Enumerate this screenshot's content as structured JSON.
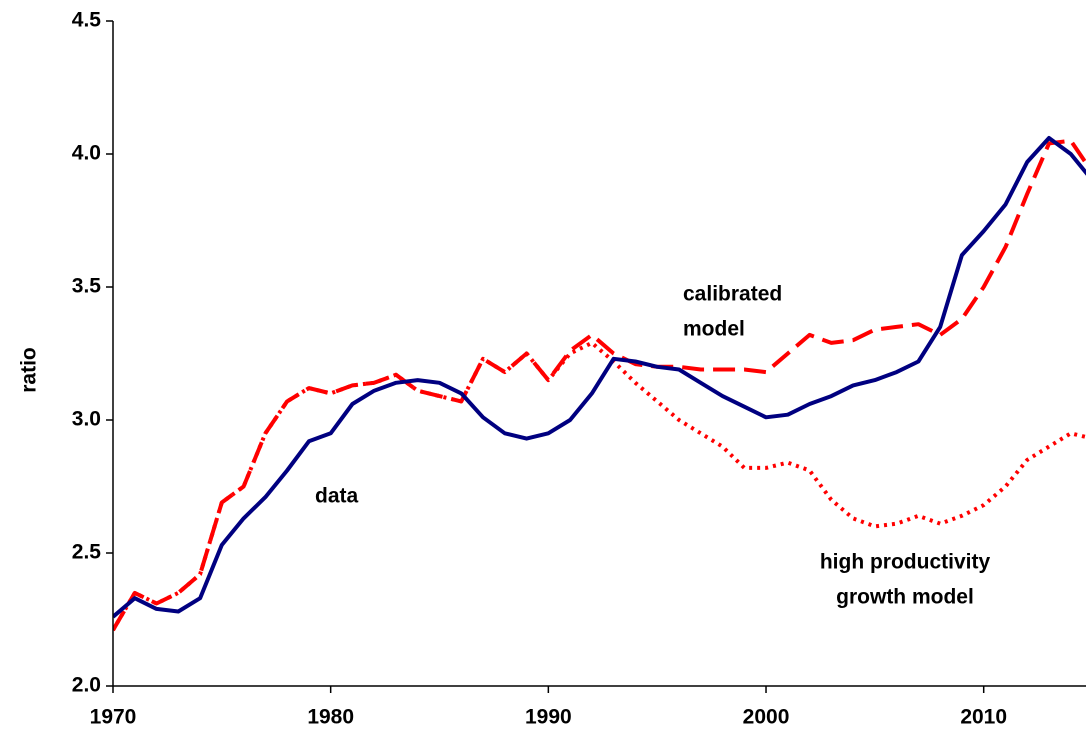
{
  "chart_data": {
    "type": "line",
    "y_label": "ratio",
    "x": [
      1970,
      1971,
      1972,
      1973,
      1974,
      1975,
      1976,
      1977,
      1978,
      1979,
      1980,
      1981,
      1982,
      1983,
      1984,
      1985,
      1986,
      1987,
      1988,
      1989,
      1990,
      1991,
      1992,
      1993,
      1994,
      1995,
      1996,
      1997,
      1998,
      1999,
      2000,
      2001,
      2002,
      2003,
      2004,
      2005,
      2006,
      2007,
      2008,
      2009,
      2010,
      2011,
      2012,
      2013,
      2014,
      2015
    ],
    "series": [
      {
        "name": "high productivity growth model",
        "color": "#ff0000",
        "style": "dotted",
        "values": [
          2.21,
          2.35,
          2.31,
          2.35,
          2.42,
          2.69,
          2.75,
          2.95,
          3.07,
          3.12,
          3.1,
          3.13,
          3.14,
          3.17,
          3.11,
          3.09,
          3.07,
          3.23,
          3.18,
          3.25,
          3.15,
          3.25,
          3.29,
          3.22,
          3.14,
          3.07,
          3.0,
          2.95,
          2.9,
          2.82,
          2.82,
          2.84,
          2.81,
          2.7,
          2.63,
          2.6,
          2.61,
          2.64,
          2.61,
          2.64,
          2.68,
          2.75,
          2.85,
          2.9,
          2.95,
          2.93
        ]
      },
      {
        "name": "calibrated model",
        "color": "#ff0000",
        "style": "dashed",
        "values": [
          2.21,
          2.35,
          2.31,
          2.35,
          2.42,
          2.69,
          2.75,
          2.95,
          3.07,
          3.12,
          3.1,
          3.13,
          3.14,
          3.17,
          3.11,
          3.09,
          3.07,
          3.23,
          3.18,
          3.25,
          3.15,
          3.26,
          3.32,
          3.25,
          3.21,
          3.2,
          3.2,
          3.19,
          3.19,
          3.19,
          3.18,
          3.25,
          3.32,
          3.29,
          3.3,
          3.34,
          3.35,
          3.36,
          3.32,
          3.38,
          3.5,
          3.65,
          3.85,
          4.04,
          4.05,
          3.93
        ]
      },
      {
        "name": "data",
        "color": "#000080",
        "style": "solid",
        "values": [
          2.26,
          2.33,
          2.29,
          2.28,
          2.33,
          2.53,
          2.63,
          2.71,
          2.81,
          2.92,
          2.95,
          3.06,
          3.11,
          3.14,
          3.15,
          3.14,
          3.1,
          3.01,
          2.95,
          2.93,
          2.95,
          3.0,
          3.1,
          3.23,
          3.22,
          3.2,
          3.19,
          3.14,
          3.09,
          3.05,
          3.01,
          3.02,
          3.06,
          3.09,
          3.13,
          3.15,
          3.18,
          3.22,
          3.35,
          3.62,
          3.71,
          3.81,
          3.97,
          4.06,
          4.0,
          3.9
        ]
      }
    ],
    "annotations": [
      {
        "lines": [
          "calibrated",
          "model"
        ]
      },
      {
        "lines": [
          "data"
        ]
      },
      {
        "lines": [
          "high productivity",
          "growth model"
        ]
      }
    ],
    "xlim": [
      1970,
      2014.7
    ],
    "xticks": [
      1970,
      1980,
      1990,
      2000,
      2010
    ],
    "ylim": [
      2.0,
      4.5
    ],
    "yticks": [
      {
        "value": 2,
        "label": "2.0"
      },
      2.5,
      {
        "value": 3,
        "label": "3.0"
      },
      3.5,
      {
        "value": 4,
        "label": "4.0"
      },
      4.5
    ],
    "grid": false
  }
}
